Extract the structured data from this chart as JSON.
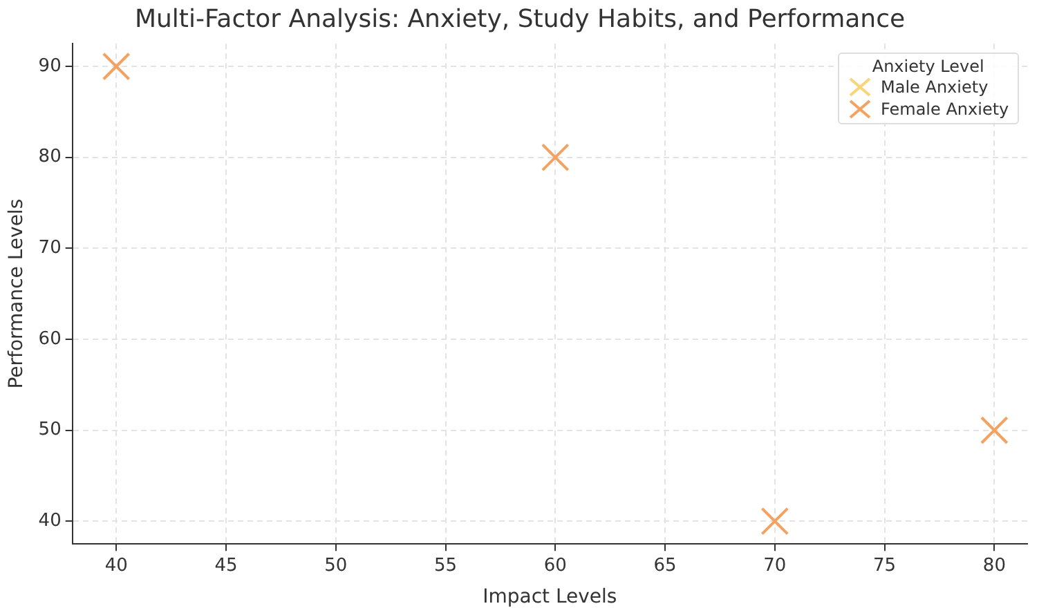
{
  "chart_data": {
    "type": "scatter",
    "title": "Multi-Factor Analysis: Anxiety, Study Habits, and Performance",
    "xlabel": "Impact Levels",
    "ylabel": "Performance Levels",
    "legend_title": "Anxiety Level",
    "x": [
      40,
      60,
      70,
      80
    ],
    "series": [
      {
        "name": "Male Anxiety",
        "color": "#f9d479",
        "values": [
          null,
          null,
          null,
          null
        ]
      },
      {
        "name": "Female Anxiety",
        "color": "#f4a261",
        "values": [
          90,
          80,
          40,
          50
        ]
      }
    ],
    "xlim": [
      38,
      81.5
    ],
    "xticks": [
      40,
      45,
      50,
      55,
      60,
      65,
      70,
      75,
      80
    ],
    "ylim": [
      37.5,
      92.5
    ],
    "yticks": [
      40,
      50,
      60,
      70,
      80,
      90
    ],
    "grid": true,
    "legend": "top right",
    "marker": "cross"
  }
}
